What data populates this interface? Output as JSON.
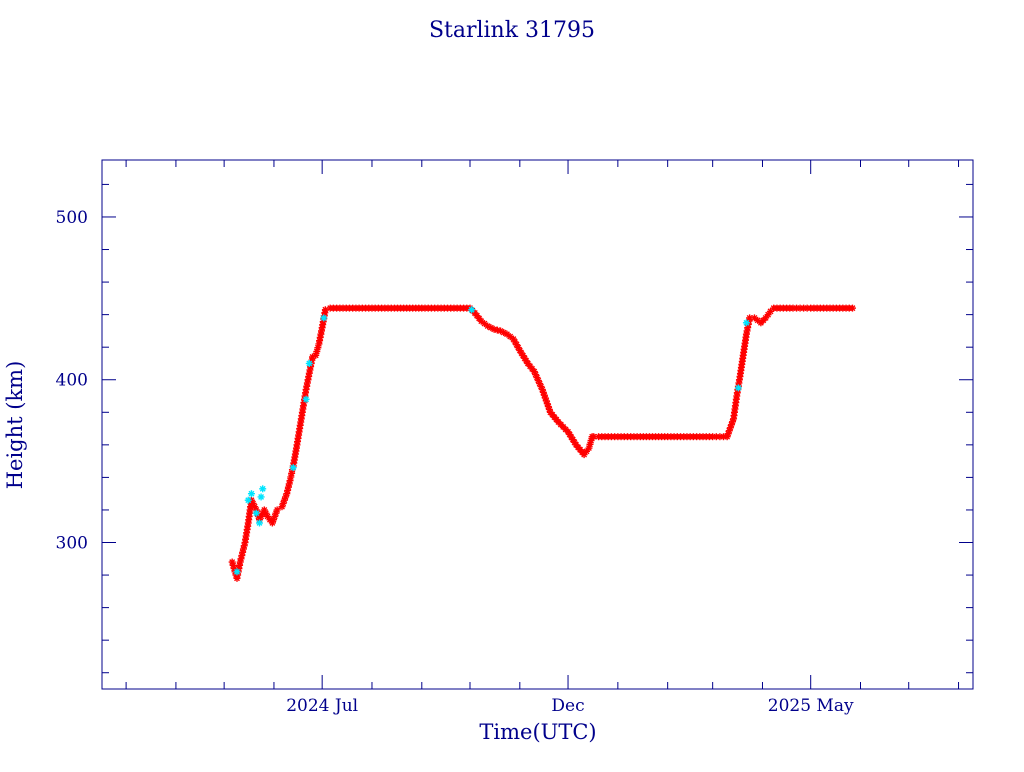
{
  "chart_data": {
    "type": "scatter",
    "title": "Starlink 31795",
    "xlabel": "Time(UTC)",
    "ylabel": "Height (km)",
    "xlim": [
      "2024-02-15",
      "2025-08-10"
    ],
    "ylim": [
      210,
      535
    ],
    "x_ticks": [
      {
        "date": "2024-07-01",
        "label": "2024 Jul"
      },
      {
        "date": "2024-12-01",
        "label": "Dec"
      },
      {
        "date": "2025-05-01",
        "label": "2025 May"
      }
    ],
    "y_ticks": [
      {
        "value": 300,
        "label": "300"
      },
      {
        "value": 400,
        "label": "400"
      },
      {
        "value": 500,
        "label": "500"
      }
    ],
    "grid": false,
    "colors": {
      "axes": "#00008b",
      "text": "#00008b",
      "series_main": "#ff0000",
      "series_alt": "#00e5ff"
    },
    "series": [
      {
        "marker": "asterisk",
        "color": "#ff0000",
        "x": [
          "2024-05-06",
          "2024-05-09",
          "2024-05-11",
          "2024-05-14",
          "2024-05-16",
          "2024-05-18",
          "2024-05-21",
          "2024-05-23",
          "2024-05-26",
          "2024-05-28",
          "2024-05-31",
          "2024-06-03",
          "2024-06-06",
          "2024-06-09",
          "2024-06-11",
          "2024-06-13",
          "2024-06-15",
          "2024-06-17",
          "2024-06-19",
          "2024-06-21",
          "2024-06-23",
          "2024-06-25",
          "2024-06-27",
          "2024-06-29",
          "2024-07-01",
          "2024-07-03",
          "2024-07-06",
          "2024-07-10",
          "2024-07-20",
          "2024-08-01",
          "2024-08-15",
          "2024-09-01",
          "2024-09-15",
          "2024-10-01",
          "2024-10-04",
          "2024-10-08",
          "2024-10-12",
          "2024-10-16",
          "2024-10-20",
          "2024-10-24",
          "2024-10-28",
          "2024-11-01",
          "2024-11-06",
          "2024-11-10",
          "2024-11-15",
          "2024-11-20",
          "2024-11-25",
          "2024-12-01",
          "2024-12-06",
          "2024-12-11",
          "2024-12-14",
          "2024-12-16",
          "2024-12-17",
          "2024-12-20",
          "2025-01-01",
          "2025-01-15",
          "2025-02-01",
          "2025-02-15",
          "2025-03-01",
          "2025-03-10",
          "2025-03-14",
          "2025-03-16",
          "2025-03-18",
          "2025-03-20",
          "2025-03-22",
          "2025-03-24",
          "2025-03-27",
          "2025-03-31",
          "2025-04-03",
          "2025-04-06",
          "2025-04-08",
          "2025-04-12",
          "2025-04-20",
          "2025-05-01",
          "2025-05-15",
          "2025-05-27"
        ],
        "y": [
          288,
          278,
          288,
          300,
          312,
          326,
          320,
          314,
          320,
          316,
          312,
          320,
          322,
          330,
          338,
          347,
          358,
          370,
          382,
          394,
          404,
          414,
          415,
          422,
          432,
          443,
          444,
          444,
          444,
          444,
          444,
          444,
          444,
          444,
          441,
          436,
          433,
          431,
          430,
          428,
          425,
          418,
          410,
          405,
          394,
          380,
          374,
          368,
          360,
          354,
          358,
          365,
          365,
          365,
          365,
          365,
          365,
          365,
          365,
          365,
          376,
          390,
          402,
          415,
          428,
          438,
          438,
          435,
          438,
          442,
          444,
          444,
          444,
          444,
          444,
          444
        ]
      },
      {
        "marker": "asterisk",
        "color": "#00e5ff",
        "x": [
          "2024-05-09",
          "2024-05-16",
          "2024-05-18",
          "2024-05-21",
          "2024-05-23",
          "2024-05-24",
          "2024-05-25",
          "2024-06-13",
          "2024-06-21",
          "2024-06-23",
          "2024-07-02",
          "2024-10-02",
          "2025-03-17",
          "2025-03-22"
        ],
        "y": [
          282,
          326,
          330,
          318,
          312,
          328,
          333,
          346,
          388,
          410,
          438,
          443,
          395,
          435
        ]
      }
    ]
  }
}
